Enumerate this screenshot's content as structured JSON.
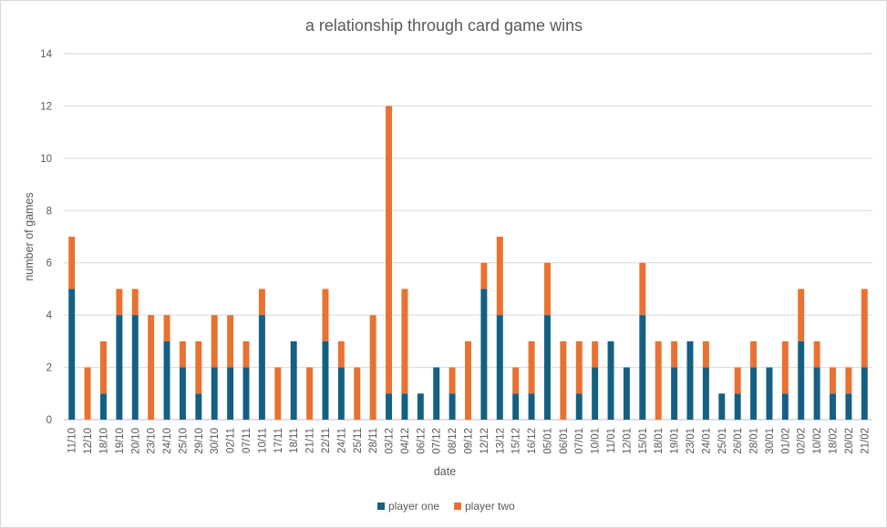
{
  "chart_data": {
    "type": "bar",
    "stacked": true,
    "title": "a relationship through card game wins",
    "xlabel": "date",
    "ylabel": "number of games",
    "ylim": [
      0,
      14
    ],
    "yticks": [
      0,
      2,
      4,
      6,
      8,
      10,
      12,
      14
    ],
    "grid": true,
    "legend_position": "bottom",
    "categories": [
      "11/10",
      "12/10",
      "18/10",
      "19/10",
      "20/10",
      "23/10",
      "24/10",
      "25/10",
      "29/10",
      "30/10",
      "02/11",
      "07/11",
      "10/11",
      "17/11",
      "18/11",
      "21/11",
      "22/11",
      "24/11",
      "25/11",
      "28/11",
      "03/12",
      "04/12",
      "06/12",
      "07/12",
      "08/12",
      "09/12",
      "12/12",
      "13/12",
      "15/12",
      "16/12",
      "05/01",
      "06/01",
      "07/01",
      "10/01",
      "11/01",
      "12/01",
      "15/01",
      "18/01",
      "19/01",
      "23/01",
      "24/01",
      "25/01",
      "26/01",
      "28/01",
      "30/01",
      "01/02",
      "02/02",
      "10/02",
      "18/02",
      "20/02",
      "21/02"
    ],
    "series": [
      {
        "name": "player one",
        "color": "#156082",
        "values": [
          5,
          0,
          1,
          4,
          4,
          0,
          3,
          2,
          1,
          2,
          2,
          2,
          4,
          0,
          3,
          0,
          3,
          2,
          0,
          0,
          1,
          1,
          1,
          2,
          1,
          0,
          5,
          4,
          1,
          1,
          4,
          0,
          1,
          2,
          3,
          2,
          4,
          0,
          2,
          3,
          2,
          1,
          1,
          2,
          2,
          1,
          3,
          2,
          1,
          1,
          2
        ]
      },
      {
        "name": "player two",
        "color": "#E97132",
        "values": [
          2,
          2,
          2,
          1,
          1,
          4,
          1,
          1,
          2,
          2,
          2,
          1,
          1,
          2,
          0,
          2,
          2,
          1,
          2,
          4,
          11,
          4,
          0,
          0,
          1,
          3,
          1,
          3,
          1,
          2,
          2,
          3,
          2,
          1,
          0,
          0,
          2,
          3,
          1,
          0,
          1,
          0,
          1,
          1,
          0,
          2,
          2,
          1,
          1,
          1,
          3
        ]
      }
    ]
  }
}
